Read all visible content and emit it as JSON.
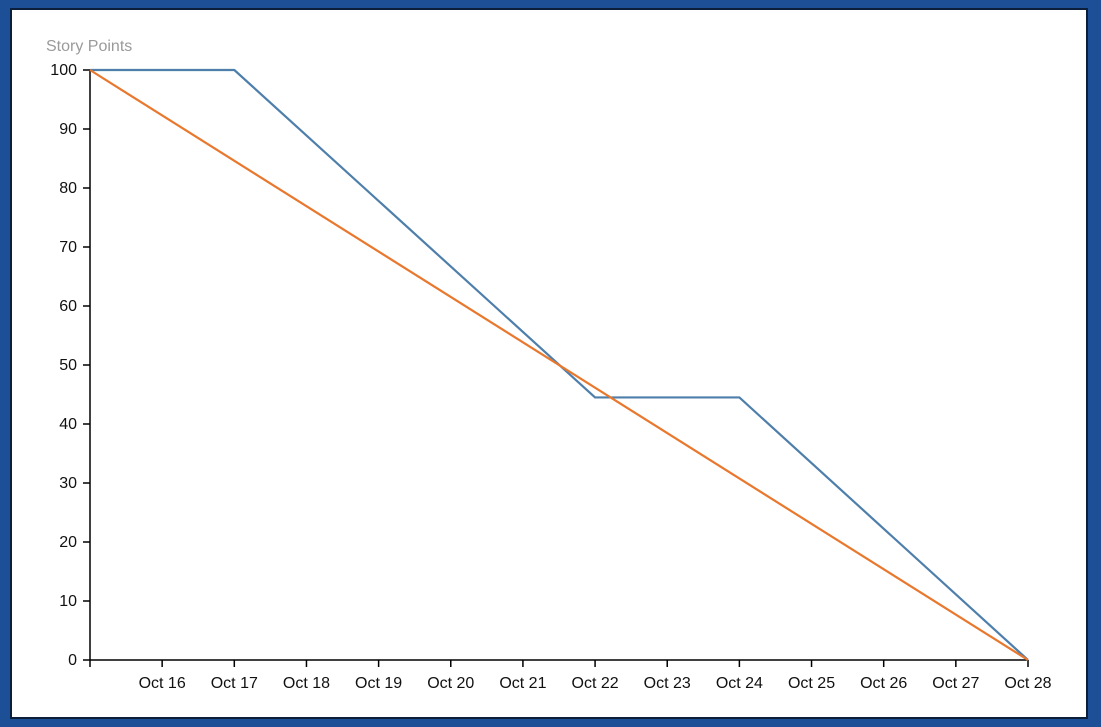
{
  "chart_data": {
    "type": "line",
    "title": "",
    "ylabel": "Story Points",
    "xlabel": "",
    "ylim": [
      0,
      100
    ],
    "yticks": [
      0,
      10,
      20,
      30,
      40,
      50,
      60,
      70,
      80,
      90,
      100
    ],
    "x_start": "Oct 15",
    "x_end": "Oct 28",
    "x_tick_labels": [
      "Oct 16",
      "Oct 17",
      "Oct 18",
      "Oct 19",
      "Oct 20",
      "Oct 21",
      "Oct 22",
      "Oct 23",
      "Oct 24",
      "Oct 25",
      "Oct 26",
      "Oct 27",
      "Oct 28"
    ],
    "grid": false,
    "legend": "none",
    "series": [
      {
        "color": "#4e7fab",
        "x": [
          "Oct 15",
          "Oct 17",
          "Oct 22",
          "Oct 24",
          "Oct 28"
        ],
        "y": [
          100,
          100,
          44.5,
          44.5,
          0
        ]
      },
      {
        "color": "#e8782e",
        "x": [
          "Oct 15",
          "Oct 28"
        ],
        "y": [
          100,
          0
        ]
      }
    ]
  }
}
